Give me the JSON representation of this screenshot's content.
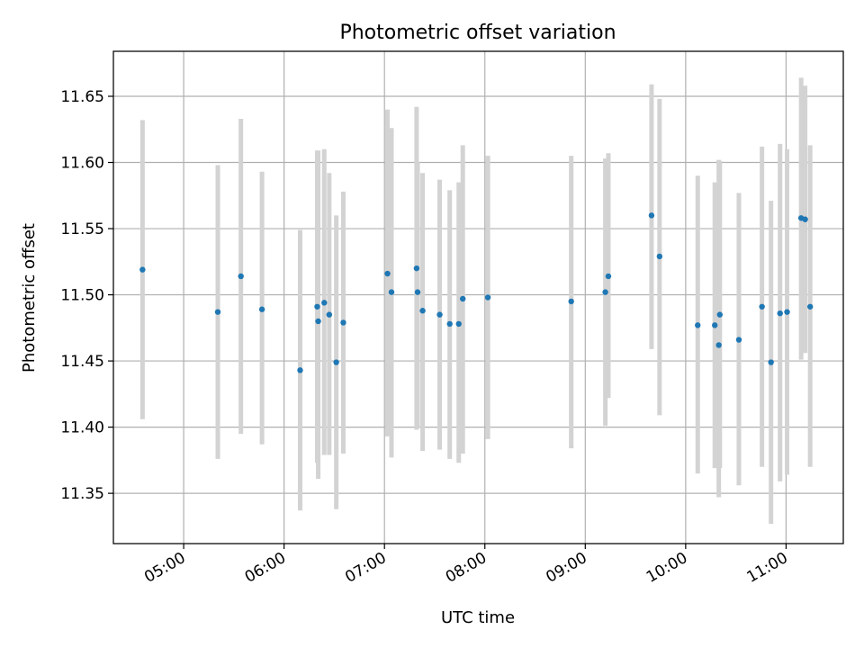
{
  "chart_data": {
    "type": "scatter",
    "title": "Photometric offset variation",
    "xlabel": "UTC time",
    "ylabel": "Photometric offset",
    "x_unit": "hours UTC",
    "xlim": [
      4.3,
      11.57
    ],
    "ylim": [
      11.312,
      11.684
    ],
    "x_ticks": [
      {
        "value": 5,
        "label": "05:00"
      },
      {
        "value": 6,
        "label": "06:00"
      },
      {
        "value": 7,
        "label": "07:00"
      },
      {
        "value": 8,
        "label": "08:00"
      },
      {
        "value": 9,
        "label": "09:00"
      },
      {
        "value": 10,
        "label": "10:00"
      },
      {
        "value": 11,
        "label": "11:00"
      }
    ],
    "y_ticks": [
      {
        "value": 11.35,
        "label": "11.35"
      },
      {
        "value": 11.4,
        "label": "11.40"
      },
      {
        "value": 11.45,
        "label": "11.45"
      },
      {
        "value": 11.5,
        "label": "11.50"
      },
      {
        "value": 11.55,
        "label": "11.55"
      },
      {
        "value": 11.6,
        "label": "11.60"
      },
      {
        "value": 11.65,
        "label": "11.65"
      }
    ],
    "grid": true,
    "tick_label_rotation": 30,
    "colors": {
      "points": "#1f77b4",
      "errorbars": "#d3d3d3",
      "grid": "#b0b0b0"
    },
    "points": [
      {
        "x": 4.59,
        "y": 11.519,
        "low": 11.406,
        "high": 11.632
      },
      {
        "x": 5.34,
        "y": 11.487,
        "low": 11.376,
        "high": 11.598
      },
      {
        "x": 5.57,
        "y": 11.514,
        "low": 11.395,
        "high": 11.633
      },
      {
        "x": 5.78,
        "y": 11.489,
        "low": 11.387,
        "high": 11.593
      },
      {
        "x": 6.16,
        "y": 11.443,
        "low": 11.337,
        "high": 11.549
      },
      {
        "x": 6.33,
        "y": 11.491,
        "low": 11.373,
        "high": 11.609
      },
      {
        "x": 6.34,
        "y": 11.48,
        "low": 11.361,
        "high": 11.609
      },
      {
        "x": 6.4,
        "y": 11.494,
        "low": 11.379,
        "high": 11.61
      },
      {
        "x": 6.45,
        "y": 11.485,
        "low": 11.379,
        "high": 11.592
      },
      {
        "x": 6.52,
        "y": 11.449,
        "low": 11.338,
        "high": 11.56
      },
      {
        "x": 6.59,
        "y": 11.479,
        "low": 11.38,
        "high": 11.578
      },
      {
        "x": 7.03,
        "y": 11.516,
        "low": 11.393,
        "high": 11.64
      },
      {
        "x": 7.07,
        "y": 11.502,
        "low": 11.377,
        "high": 11.626
      },
      {
        "x": 7.32,
        "y": 11.52,
        "low": 11.398,
        "high": 11.642
      },
      {
        "x": 7.33,
        "y": 11.502,
        "low": 11.4,
        "high": 11.6
      },
      {
        "x": 7.38,
        "y": 11.488,
        "low": 11.382,
        "high": 11.592
      },
      {
        "x": 7.55,
        "y": 11.485,
        "low": 11.383,
        "high": 11.587
      },
      {
        "x": 7.65,
        "y": 11.478,
        "low": 11.376,
        "high": 11.579
      },
      {
        "x": 7.74,
        "y": 11.478,
        "low": 11.373,
        "high": 11.585
      },
      {
        "x": 7.78,
        "y": 11.497,
        "low": 11.38,
        "high": 11.613
      },
      {
        "x": 8.03,
        "y": 11.498,
        "low": 11.391,
        "high": 11.605
      },
      {
        "x": 8.86,
        "y": 11.495,
        "low": 11.384,
        "high": 11.605
      },
      {
        "x": 9.2,
        "y": 11.502,
        "low": 11.401,
        "high": 11.603
      },
      {
        "x": 9.23,
        "y": 11.514,
        "low": 11.422,
        "high": 11.607
      },
      {
        "x": 9.66,
        "y": 11.56,
        "low": 11.459,
        "high": 11.659
      },
      {
        "x": 9.74,
        "y": 11.529,
        "low": 11.409,
        "high": 11.648
      },
      {
        "x": 10.12,
        "y": 11.477,
        "low": 11.365,
        "high": 11.59
      },
      {
        "x": 10.29,
        "y": 11.477,
        "low": 11.369,
        "high": 11.585
      },
      {
        "x": 10.33,
        "y": 11.462,
        "low": 11.347,
        "high": 11.602
      },
      {
        "x": 10.34,
        "y": 11.485,
        "low": 11.369,
        "high": 11.601
      },
      {
        "x": 10.53,
        "y": 11.466,
        "low": 11.356,
        "high": 11.577
      },
      {
        "x": 10.76,
        "y": 11.491,
        "low": 11.37,
        "high": 11.612
      },
      {
        "x": 10.85,
        "y": 11.449,
        "low": 11.327,
        "high": 11.571
      },
      {
        "x": 10.94,
        "y": 11.486,
        "low": 11.359,
        "high": 11.614
      },
      {
        "x": 11.01,
        "y": 11.487,
        "low": 11.364,
        "high": 11.61
      },
      {
        "x": 11.15,
        "y": 11.558,
        "low": 11.451,
        "high": 11.664
      },
      {
        "x": 11.19,
        "y": 11.557,
        "low": 11.456,
        "high": 11.658
      },
      {
        "x": 11.24,
        "y": 11.491,
        "low": 11.37,
        "high": 11.613
      }
    ]
  }
}
